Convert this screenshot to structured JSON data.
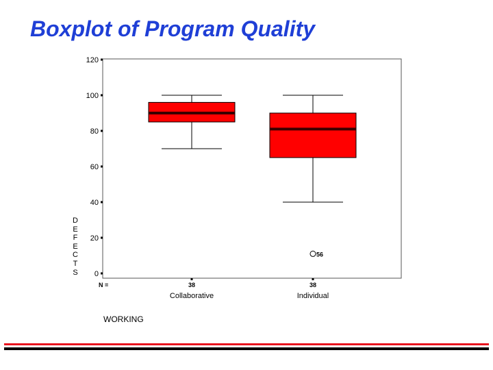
{
  "slide": {
    "title": "Boxplot of Program Quality"
  },
  "chart_data": {
    "type": "boxplot",
    "xlabel": "WORKING",
    "ylabel": "DEFECTS",
    "ylim": [
      0,
      120
    ],
    "yticks": [
      0,
      20,
      40,
      60,
      80,
      100,
      120
    ],
    "n_label": "N =",
    "categories": [
      "Collaborative",
      "Individual"
    ],
    "n": [
      "38",
      "38"
    ],
    "boxes": [
      {
        "category": "Collaborative",
        "whisker_low": 70,
        "q1": 85,
        "median": 90,
        "q3": 96,
        "whisker_high": 100
      },
      {
        "category": "Individual",
        "whisker_low": 40,
        "q1": 65,
        "median": 81,
        "q3": 90,
        "whisker_high": 100
      }
    ],
    "outliers": [
      {
        "category": "Individual",
        "value": 11,
        "label": "56"
      }
    ],
    "box_color": "#ff0000",
    "median_color": "#3a0000",
    "grid": false
  },
  "colors": {
    "title": "#1f3fd6",
    "footer_red": "#e8141e",
    "footer_black": "#000000"
  }
}
